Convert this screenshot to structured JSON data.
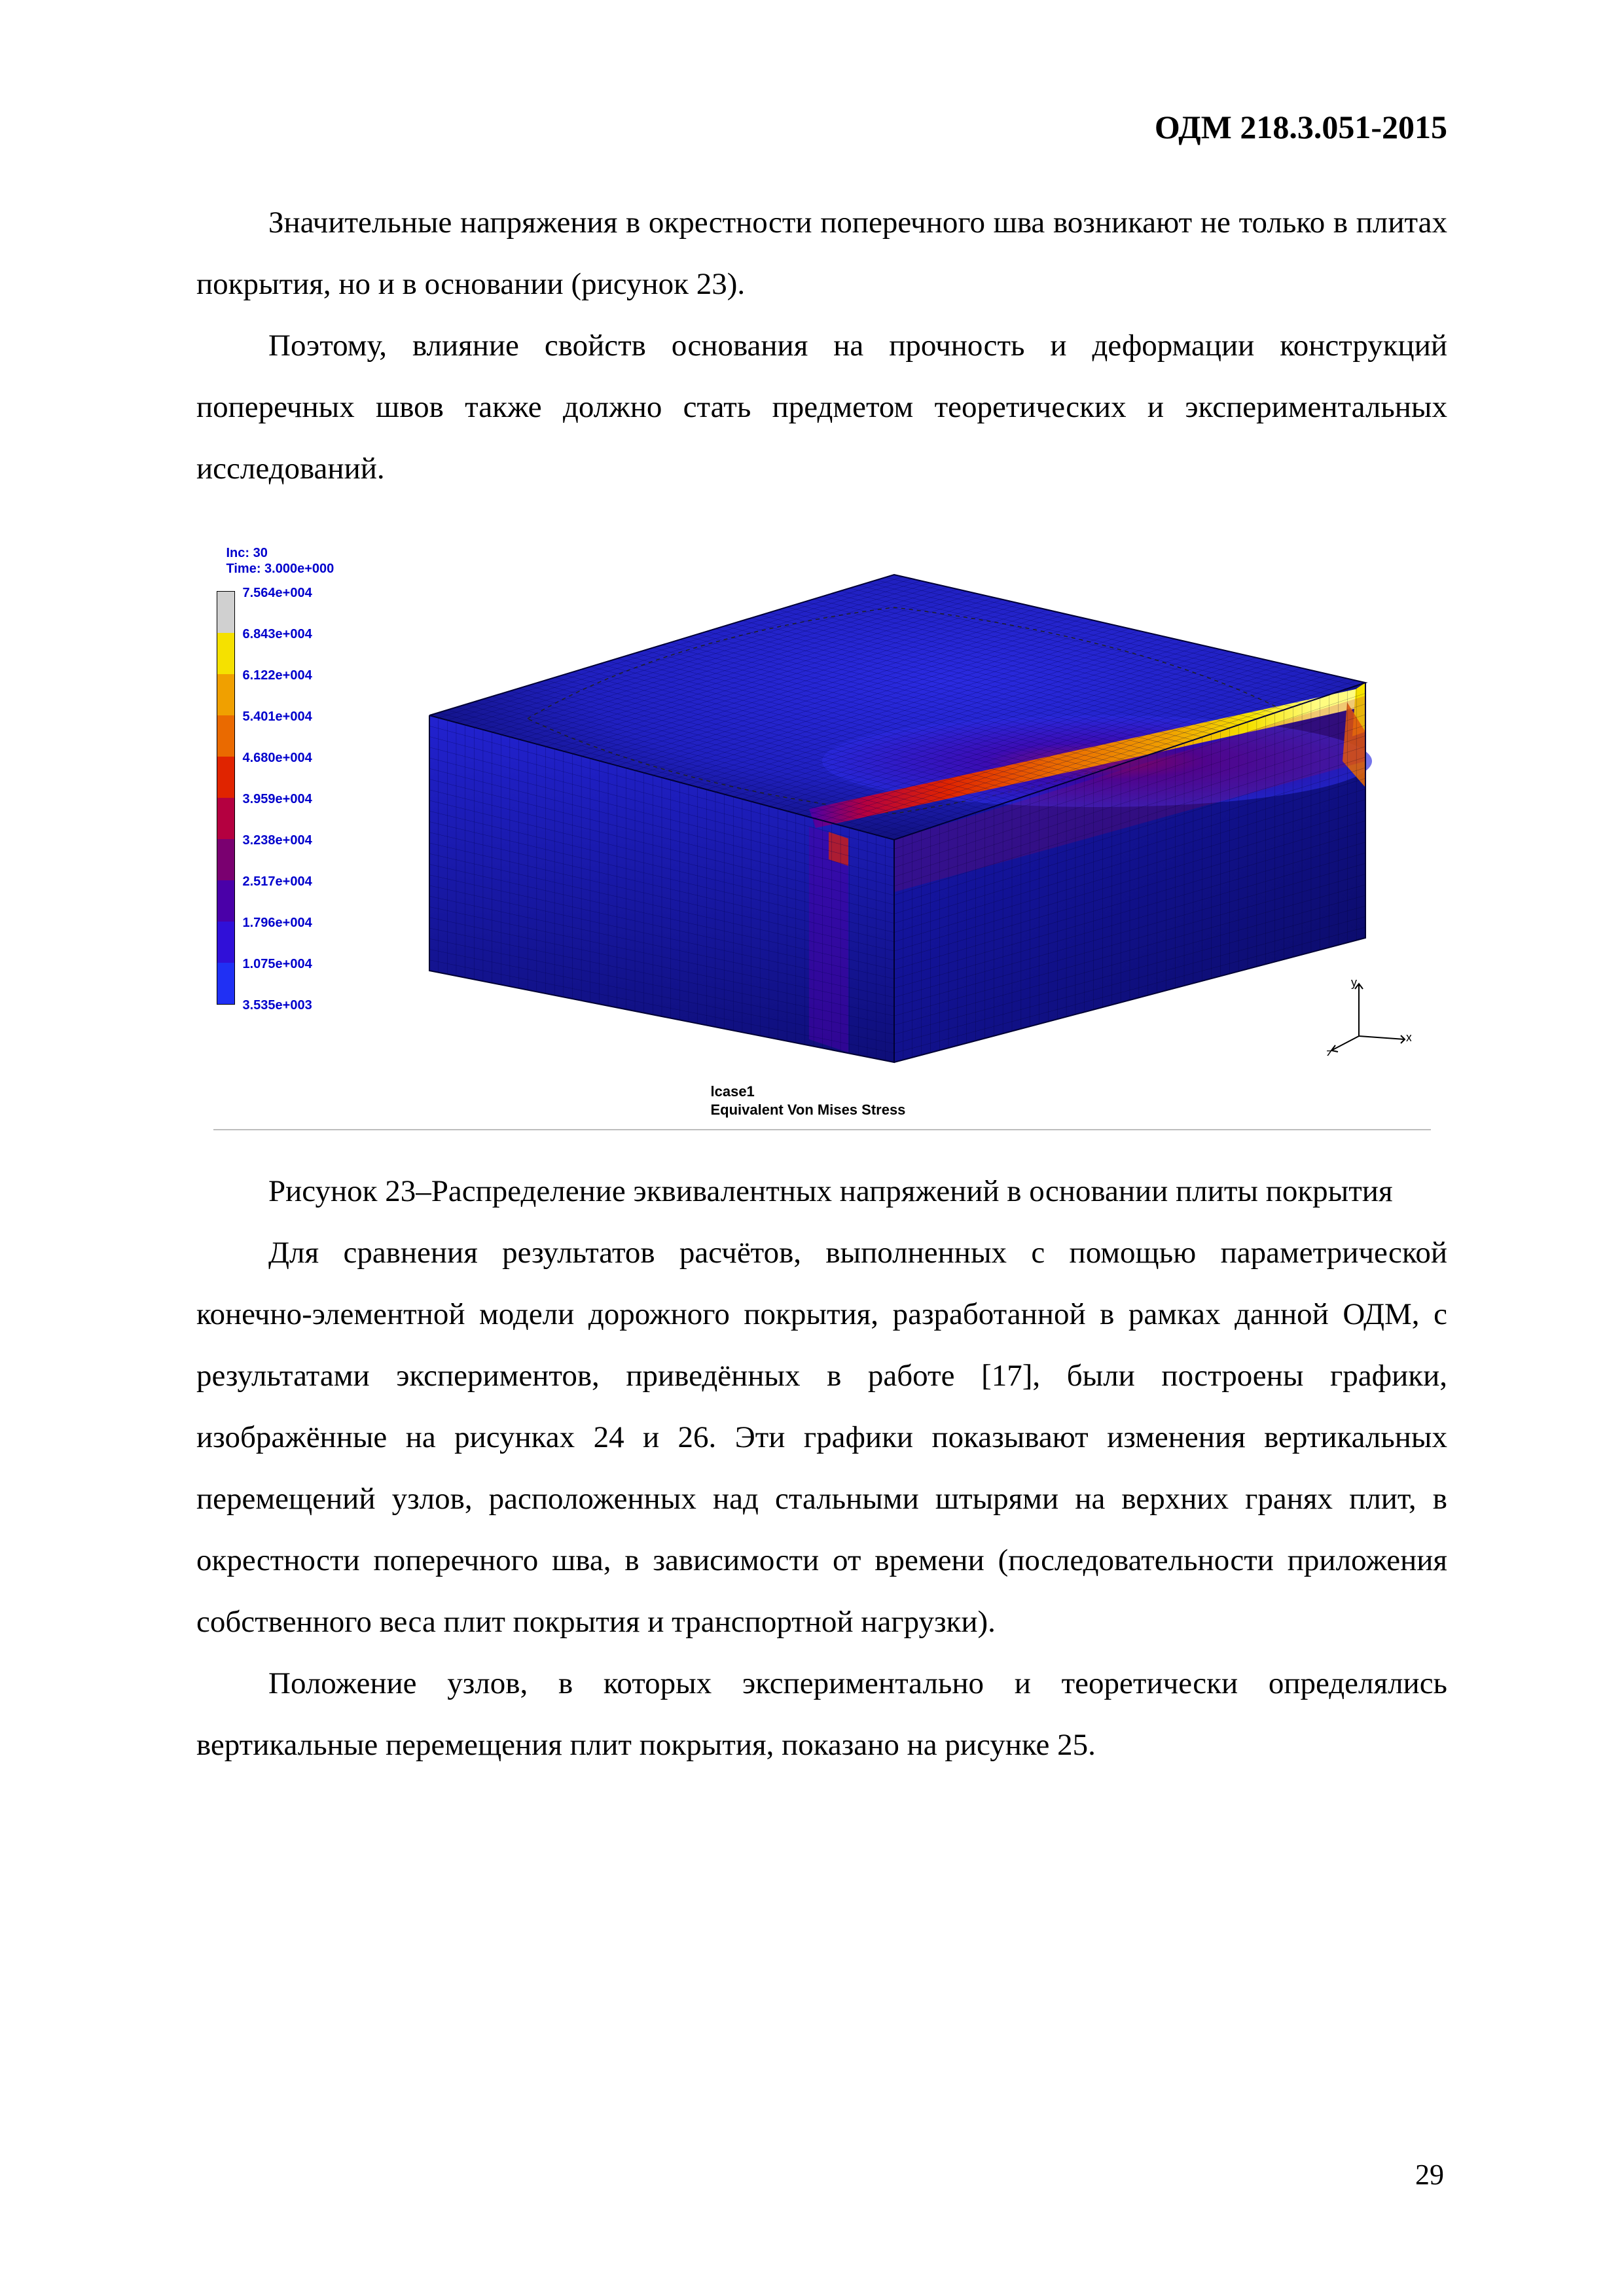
{
  "header": "ОДМ 218.3.051-2015",
  "page_number": "29",
  "paras": {
    "p1": "Значительные напряжения в окрестности поперечного шва возникают не только в плитах покрытия, но и в основании (рисунок 23).",
    "p2": "Поэтому, влияние свойств основания на прочность и деформации конструкций поперечных швов также должно стать предметом теоретических и экспериментальных исследований.",
    "caption": "Рисунок 23–Распределение эквивалентных напряжений в основании плиты покрытия",
    "p3": "Для сравнения результатов расчётов, выполненных с помощью параметрической конечно-элементной модели дорожного покрытия, разработанной в рамках данной ОДМ, с результатами экспериментов, приведённых в работе [17], были построены графики, изображённые на рисунках 24 и 26. Эти графики показывают изменения вертикальных перемещений узлов, расположенных над стальными штырями на верхних гранях плит, в окрестности поперечного шва, в зависимости от времени (последовательности приложения собственного веса плит покрытия и транспортной нагрузки).",
    "p4": "Положение узлов, в которых экспериментально и теоретически определялись вертикальные перемещения плит покрытия, показано на рисунке 25."
  },
  "figure": {
    "meta_line1": "Inc:   30",
    "meta_line2": "Time:  3.000e+000",
    "lcase": "lcase1",
    "subtitle": "Equivalent Von Mises Stress",
    "legend_labels": [
      "7.564e+004",
      "6.843e+004",
      "6.122e+004",
      "5.401e+004",
      "4.680e+004",
      "3.959e+004",
      "3.238e+004",
      "2.517e+004",
      "1.796e+004",
      "1.075e+004",
      "3.535e+003"
    ],
    "legend_colors": [
      "#d0d0d0",
      "#f5e100",
      "#f0a000",
      "#ea6a00",
      "#e02400",
      "#b40040",
      "#7a0070",
      "#4a00a8",
      "#3010d8",
      "#2030f4"
    ],
    "mesh": {
      "top_face_color_dark": "#2020c0",
      "top_face_color_mid": "#2a2ae0",
      "side_color": "#1818a8",
      "front_color": "#1c1cc4",
      "seam_colors": [
        "#2a2ae0",
        "#4a00a8",
        "#b40040",
        "#e02400",
        "#ea6a00",
        "#f0a000",
        "#f5e100",
        "#fffc80"
      ],
      "edge_hot": "#f5e100"
    },
    "axes": {
      "x": "x",
      "y": "y",
      "z": "z"
    }
  }
}
